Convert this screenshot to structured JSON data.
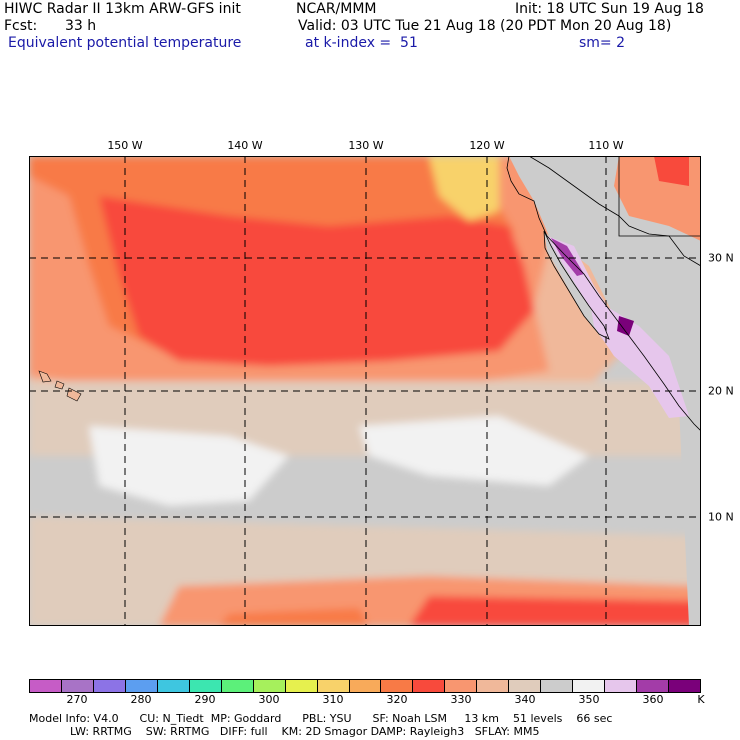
{
  "header": {
    "title": "HIWC Radar II 13km ARW-GFS init",
    "org": "NCAR/MMM",
    "init": "Init: 18 UTC Sun 19 Aug 18",
    "fcst_label": "Fcst:",
    "fcst_value": "33 h",
    "valid": "Valid: 03 UTC Tue 21 Aug 18 (20 PDT Mon 20 Aug 18)",
    "field": "Equivalent potential temperature",
    "level": "at k-index =  51",
    "smoothing": "sm= 2"
  },
  "map": {
    "lon_labels": [
      "150 W",
      "140 W",
      "130 W",
      "120 W",
      "110 W"
    ],
    "lat_labels": [
      "30 N",
      "20 N",
      "10 N"
    ]
  },
  "colorbar": {
    "colors": [
      "#c65cc6",
      "#a873c6",
      "#8c73e6",
      "#5c9ef0",
      "#3ec6e0",
      "#3ce6b0",
      "#5cf07a",
      "#a6f05c",
      "#e6f04e",
      "#f8d26a",
      "#f8aa5a",
      "#f87a46",
      "#f84a3c",
      "#f89670",
      "#f0b89a",
      "#e0ccbc",
      "#cccccc",
      "#f2f2f2",
      "#e6c6ec",
      "#a33ca8",
      "#7a007a"
    ],
    "ticks": [
      "270",
      "280",
      "290",
      "300",
      "310",
      "320",
      "330",
      "340",
      "350",
      "360"
    ],
    "unit": "K"
  },
  "footer": {
    "line1": "Model Info: V4.0      CU: N_Tiedt  MP: Goddard      PBL: YSU      SF: Noah LSM     13 km    51 levels    66 sec",
    "line2": "LW: RRTMG    SW: RRTMG   DIFF: full    KM: 2D Smagor DAMP: Rayleigh3   SFLAY: MM5"
  }
}
